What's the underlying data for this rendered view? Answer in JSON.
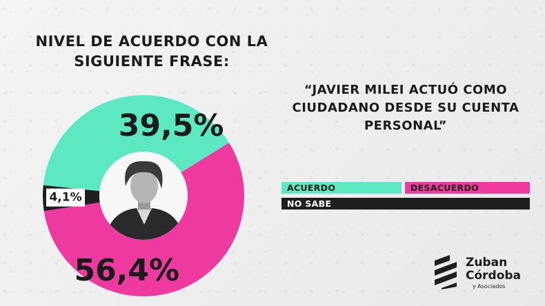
{
  "title": "NIVEL DE ACUERDO CON LA SIGUIENTE FRASE:",
  "quote": "“JAVIER MILEI ACTUÓ COMO CIUDADANO DESDE SU CUENTA PERSONAL”",
  "legend": {
    "acuerdo": "ACUERDO",
    "desacuerdo": "DESACUERDO",
    "no_sabe": "NO SABE"
  },
  "brand": {
    "name_line1": "Zuban",
    "name_line2": "Córdoba",
    "tagline": "y Asociados"
  },
  "colors": {
    "acuerdo": "#5ce8c0",
    "desacuerdo": "#ee3a9e",
    "no_sabe": "#1e1e1e"
  },
  "chart_data": {
    "type": "pie",
    "donut": true,
    "center_image": "portrait-photo",
    "categories": [
      "ACUERDO",
      "DESACUERDO",
      "NO SABE"
    ],
    "values": [
      39.5,
      56.4,
      4.1
    ],
    "labels": [
      "39,5%",
      "56,4%",
      "4,1%"
    ],
    "colors": [
      "#5ce8c0",
      "#ee3a9e",
      "#1e1e1e"
    ]
  }
}
